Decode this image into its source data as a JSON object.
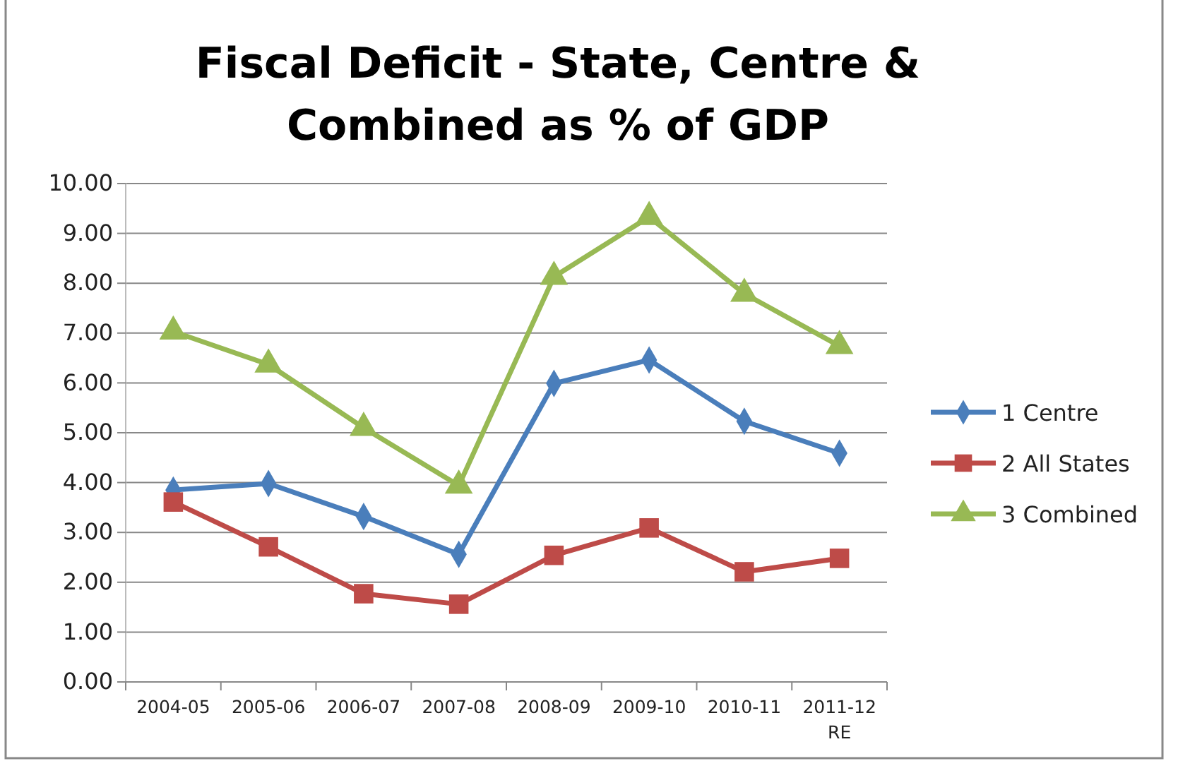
{
  "chart_data": {
    "type": "line",
    "title": "Fiscal Deficit - State, Centre &\nCombined as % of GDP",
    "categories": [
      "2004-05",
      "2005-06",
      "2006-07",
      "2007-08",
      "2008-09",
      "2009-10",
      "2010-11",
      "2011-12\nRE"
    ],
    "series": [
      {
        "name": "1 Centre",
        "color": "#4a7ebb",
        "marker": "diamond",
        "values": [
          3.85,
          3.98,
          3.32,
          2.56,
          5.99,
          6.46,
          5.23,
          4.59
        ]
      },
      {
        "name": "2 All States",
        "color": "#be4b48",
        "marker": "square",
        "values": [
          3.61,
          2.71,
          1.77,
          1.56,
          2.54,
          3.09,
          2.21,
          2.48
        ]
      },
      {
        "name": "3 Combined",
        "color": "#98b954",
        "marker": "triangle",
        "values": [
          7.03,
          6.37,
          5.1,
          3.94,
          8.13,
          9.33,
          7.79,
          6.74
        ]
      }
    ],
    "ylim": [
      0,
      10
    ],
    "yticks": [
      {
        "value": 0,
        "label": "0.00"
      },
      {
        "value": 1,
        "label": "1.00"
      },
      {
        "value": 2,
        "label": "2.00"
      },
      {
        "value": 3,
        "label": "3.00"
      },
      {
        "value": 4,
        "label": "4.00"
      },
      {
        "value": 5,
        "label": "5.00"
      },
      {
        "value": 6,
        "label": "6.00"
      },
      {
        "value": 7,
        "label": "7.00"
      },
      {
        "value": 8,
        "label": "8.00"
      },
      {
        "value": 9,
        "label": "9.00"
      },
      {
        "value": 10,
        "label": "10.00"
      }
    ],
    "grid": "y",
    "legend": "right",
    "line_style": "solid"
  }
}
